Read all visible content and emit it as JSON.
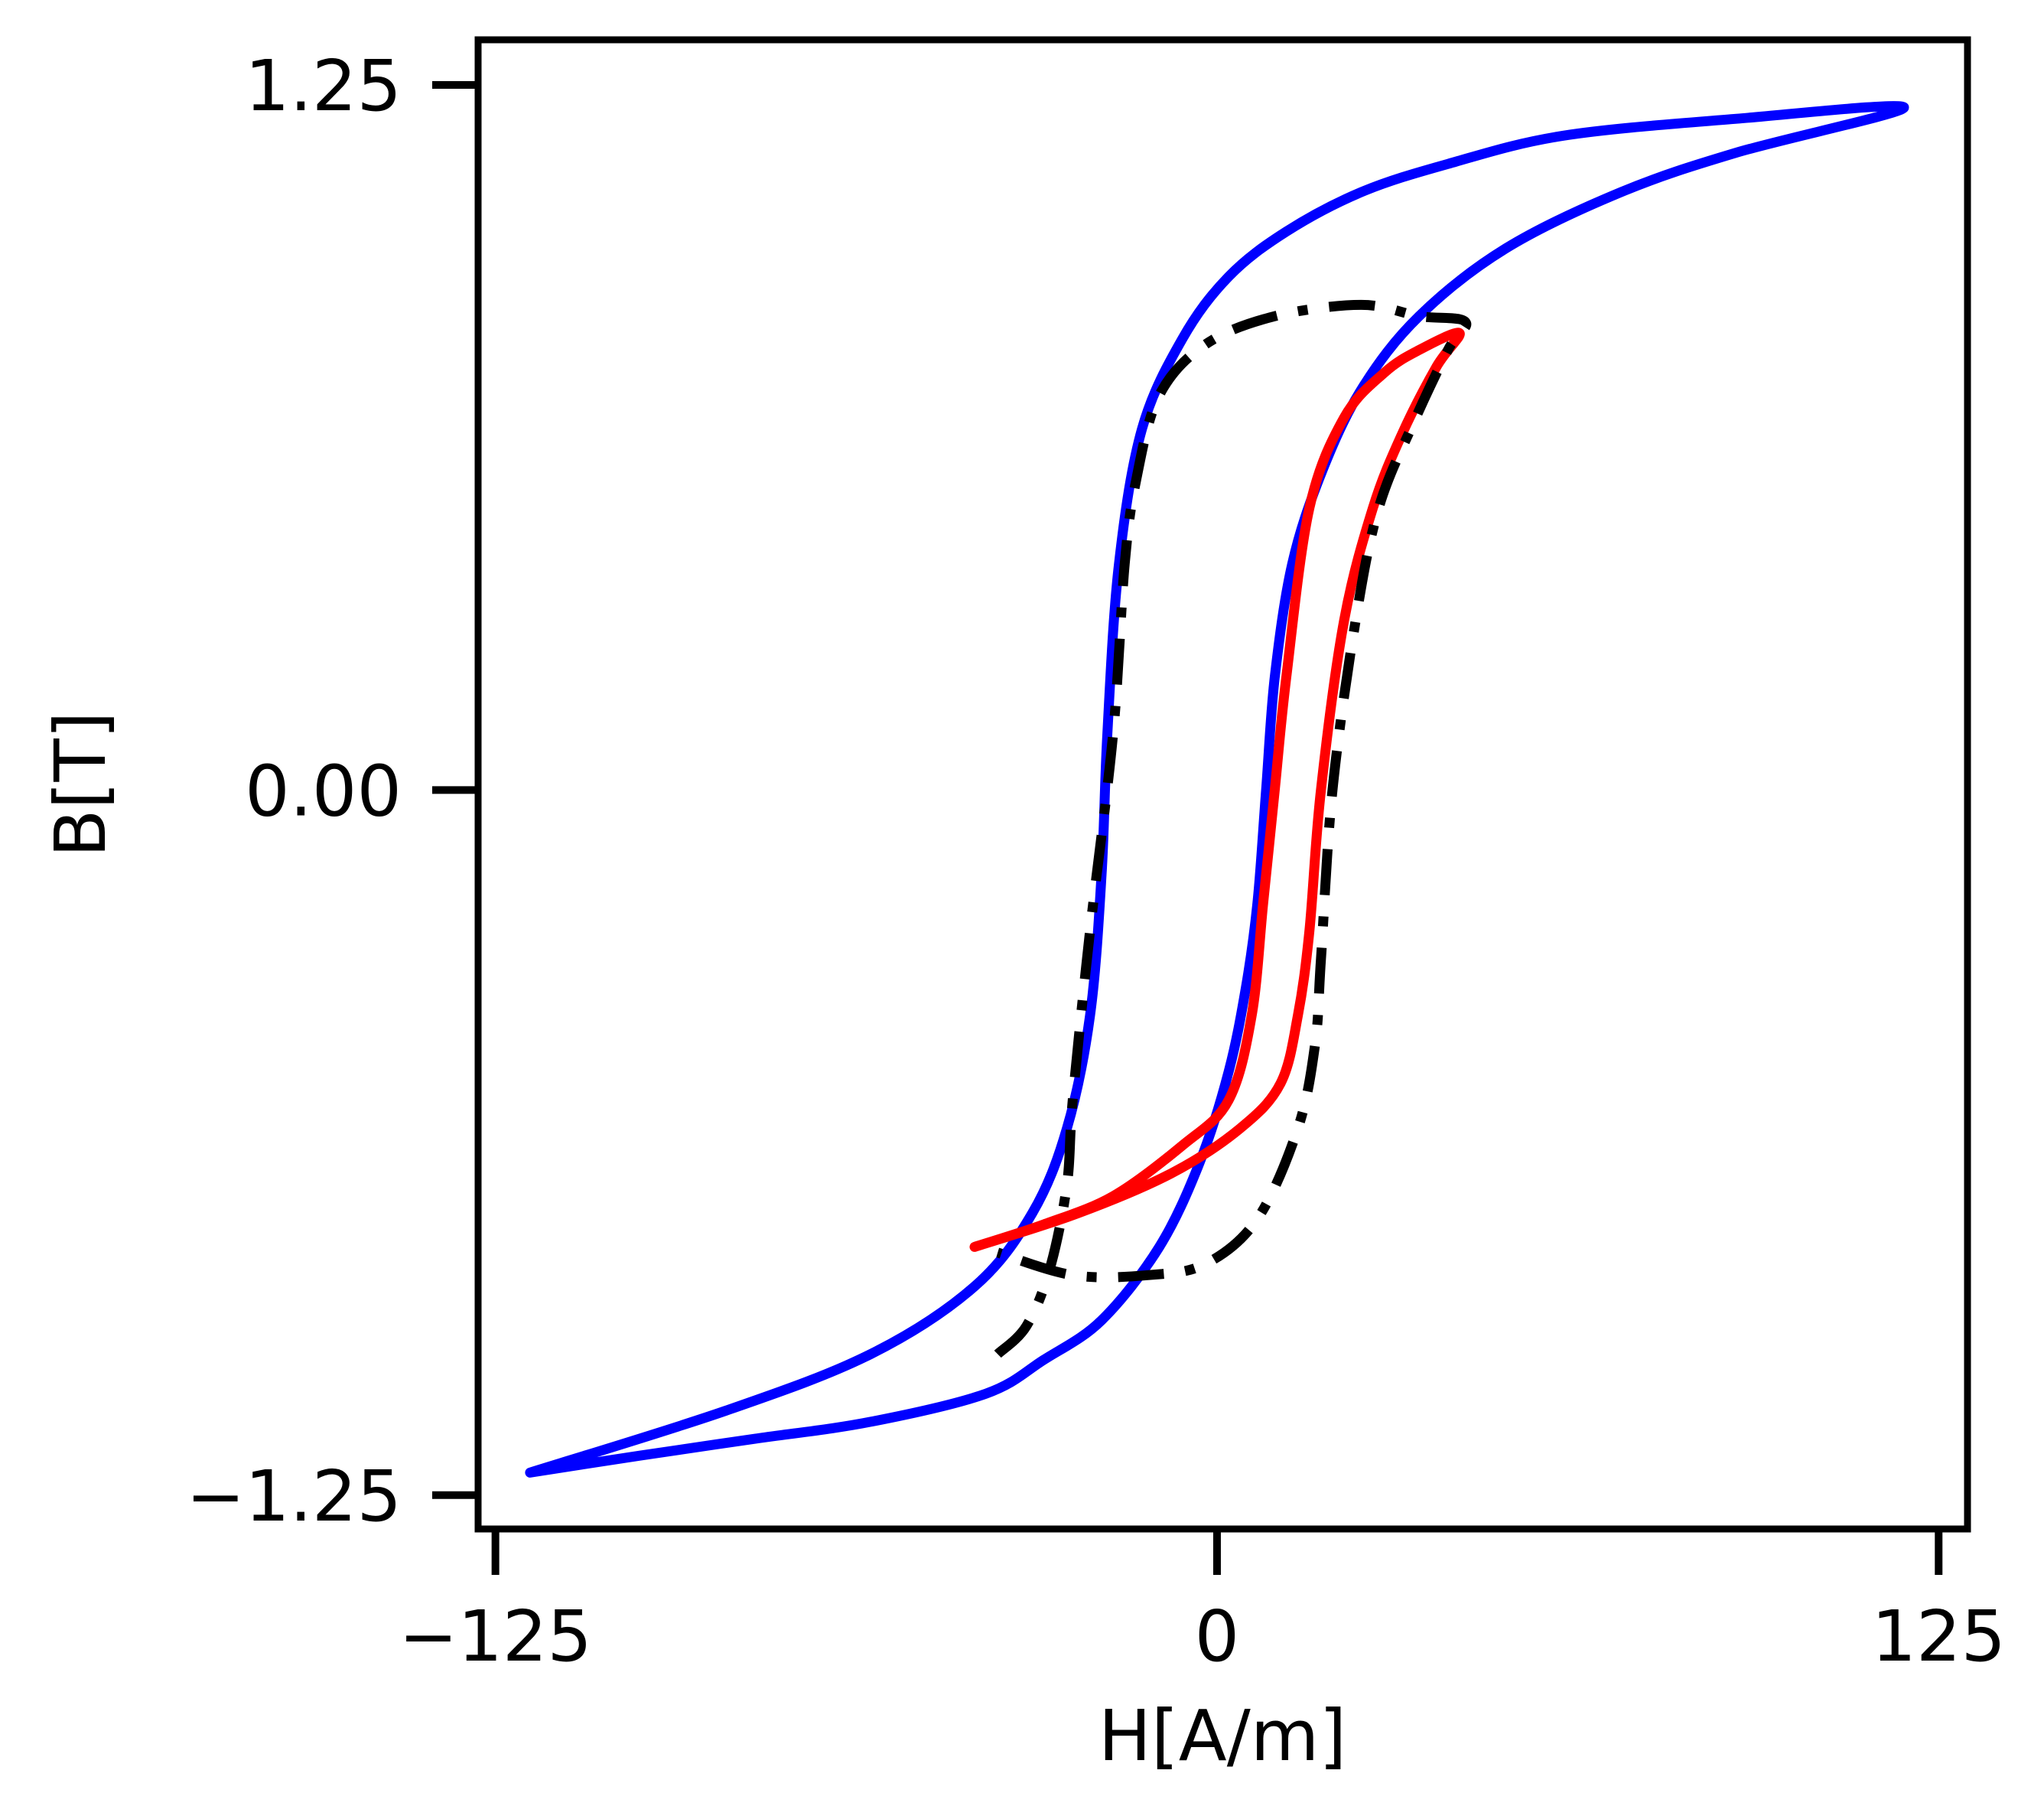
{
  "chart_data": {
    "type": "line",
    "title": "",
    "xlabel": "H[A/m]",
    "ylabel": "B[T]",
    "xlim": [
      -128,
      130
    ],
    "ylim": [
      -1.31,
      1.33
    ],
    "xticks": [
      -125,
      0,
      125
    ],
    "xtick_labels": [
      "−125",
      "0",
      "125"
    ],
    "yticks": [
      -1.25,
      0,
      1.25
    ],
    "ytick_labels": [
      "−1.25",
      "0.00",
      "1.25"
    ],
    "grid": false,
    "legend": "none",
    "series": [
      {
        "color": "#0000ff",
        "style": "solid",
        "points": [
          [
            -119,
            -1.21
          ],
          [
            -100,
            -1.18
          ],
          [
            -80,
            -1.15
          ],
          [
            -60,
            -1.12
          ],
          [
            -40,
            -1.07
          ],
          [
            -30,
            -1.01
          ],
          [
            -20,
            -0.94
          ],
          [
            -10,
            -0.81
          ],
          [
            -3,
            -0.66
          ],
          [
            2,
            -0.5
          ],
          [
            5,
            -0.35
          ],
          [
            7,
            -0.2
          ],
          [
            8.5,
            0.0
          ],
          [
            10,
            0.2
          ],
          [
            13,
            0.4
          ],
          [
            18,
            0.56
          ],
          [
            25,
            0.71
          ],
          [
            35,
            0.84
          ],
          [
            50,
            0.96
          ],
          [
            70,
            1.06
          ],
          [
            90,
            1.13
          ],
          [
            119,
            1.21
          ],
          [
            90,
            1.19
          ],
          [
            60,
            1.16
          ],
          [
            40,
            1.11
          ],
          [
            25,
            1.06
          ],
          [
            12,
            0.99
          ],
          [
            2,
            0.91
          ],
          [
            -6,
            0.8
          ],
          [
            -13,
            0.64
          ],
          [
            -17,
            0.4
          ],
          [
            -19,
            0.1
          ],
          [
            -20,
            -0.15
          ],
          [
            -22,
            -0.4
          ],
          [
            -26,
            -0.6
          ],
          [
            -32,
            -0.75
          ],
          [
            -42,
            -0.88
          ],
          [
            -60,
            -1.0
          ],
          [
            -85,
            -1.1
          ],
          [
            -119,
            -1.21
          ]
        ]
      },
      {
        "color": "#ff0000",
        "style": "solid",
        "points": [
          [
            -42,
            -0.81
          ],
          [
            -30,
            -0.77
          ],
          [
            -18,
            -0.72
          ],
          [
            -6,
            -0.63
          ],
          [
            2,
            -0.55
          ],
          [
            6,
            -0.4
          ],
          [
            8,
            -0.2
          ],
          [
            10,
            0.0
          ],
          [
            12,
            0.2
          ],
          [
            16,
            0.5
          ],
          [
            22,
            0.66
          ],
          [
            29,
            0.74
          ],
          [
            35,
            0.78
          ],
          [
            42,
            0.81
          ],
          [
            38,
            0.75
          ],
          [
            32,
            0.63
          ],
          [
            27,
            0.5
          ],
          [
            22,
            0.3
          ],
          [
            18,
            0.0
          ],
          [
            16,
            -0.25
          ],
          [
            14,
            -0.4
          ],
          [
            11,
            -0.52
          ],
          [
            4,
            -0.6
          ],
          [
            -8,
            -0.68
          ],
          [
            -24,
            -0.75
          ],
          [
            -42,
            -0.81
          ]
        ]
      },
      {
        "color": "#000000",
        "style": "dashdot",
        "points": [
          [
            -38,
            -1.0
          ],
          [
            -33,
            -0.95
          ],
          [
            -29,
            -0.85
          ],
          [
            -26,
            -0.7
          ],
          [
            -25,
            -0.55
          ],
          [
            -22,
            -0.25
          ],
          [
            -18,
            0.1
          ],
          [
            -16,
            0.4
          ],
          [
            -14,
            0.55
          ],
          [
            -10,
            0.7
          ],
          [
            -2,
            0.79
          ],
          [
            10,
            0.84
          ],
          [
            25,
            0.86
          ],
          [
            35,
            0.84
          ],
          [
            43,
            0.83
          ],
          [
            40,
            0.78
          ],
          [
            34,
            0.65
          ],
          [
            28,
            0.5
          ],
          [
            24,
            0.3
          ],
          [
            20,
            0.0
          ],
          [
            18,
            -0.3
          ],
          [
            17,
            -0.45
          ],
          [
            14,
            -0.6
          ],
          [
            7,
            -0.76
          ],
          [
            -2,
            -0.84
          ],
          [
            -12,
            -0.86
          ],
          [
            -25,
            -0.86
          ],
          [
            -38,
            -0.82
          ]
        ]
      }
    ]
  }
}
